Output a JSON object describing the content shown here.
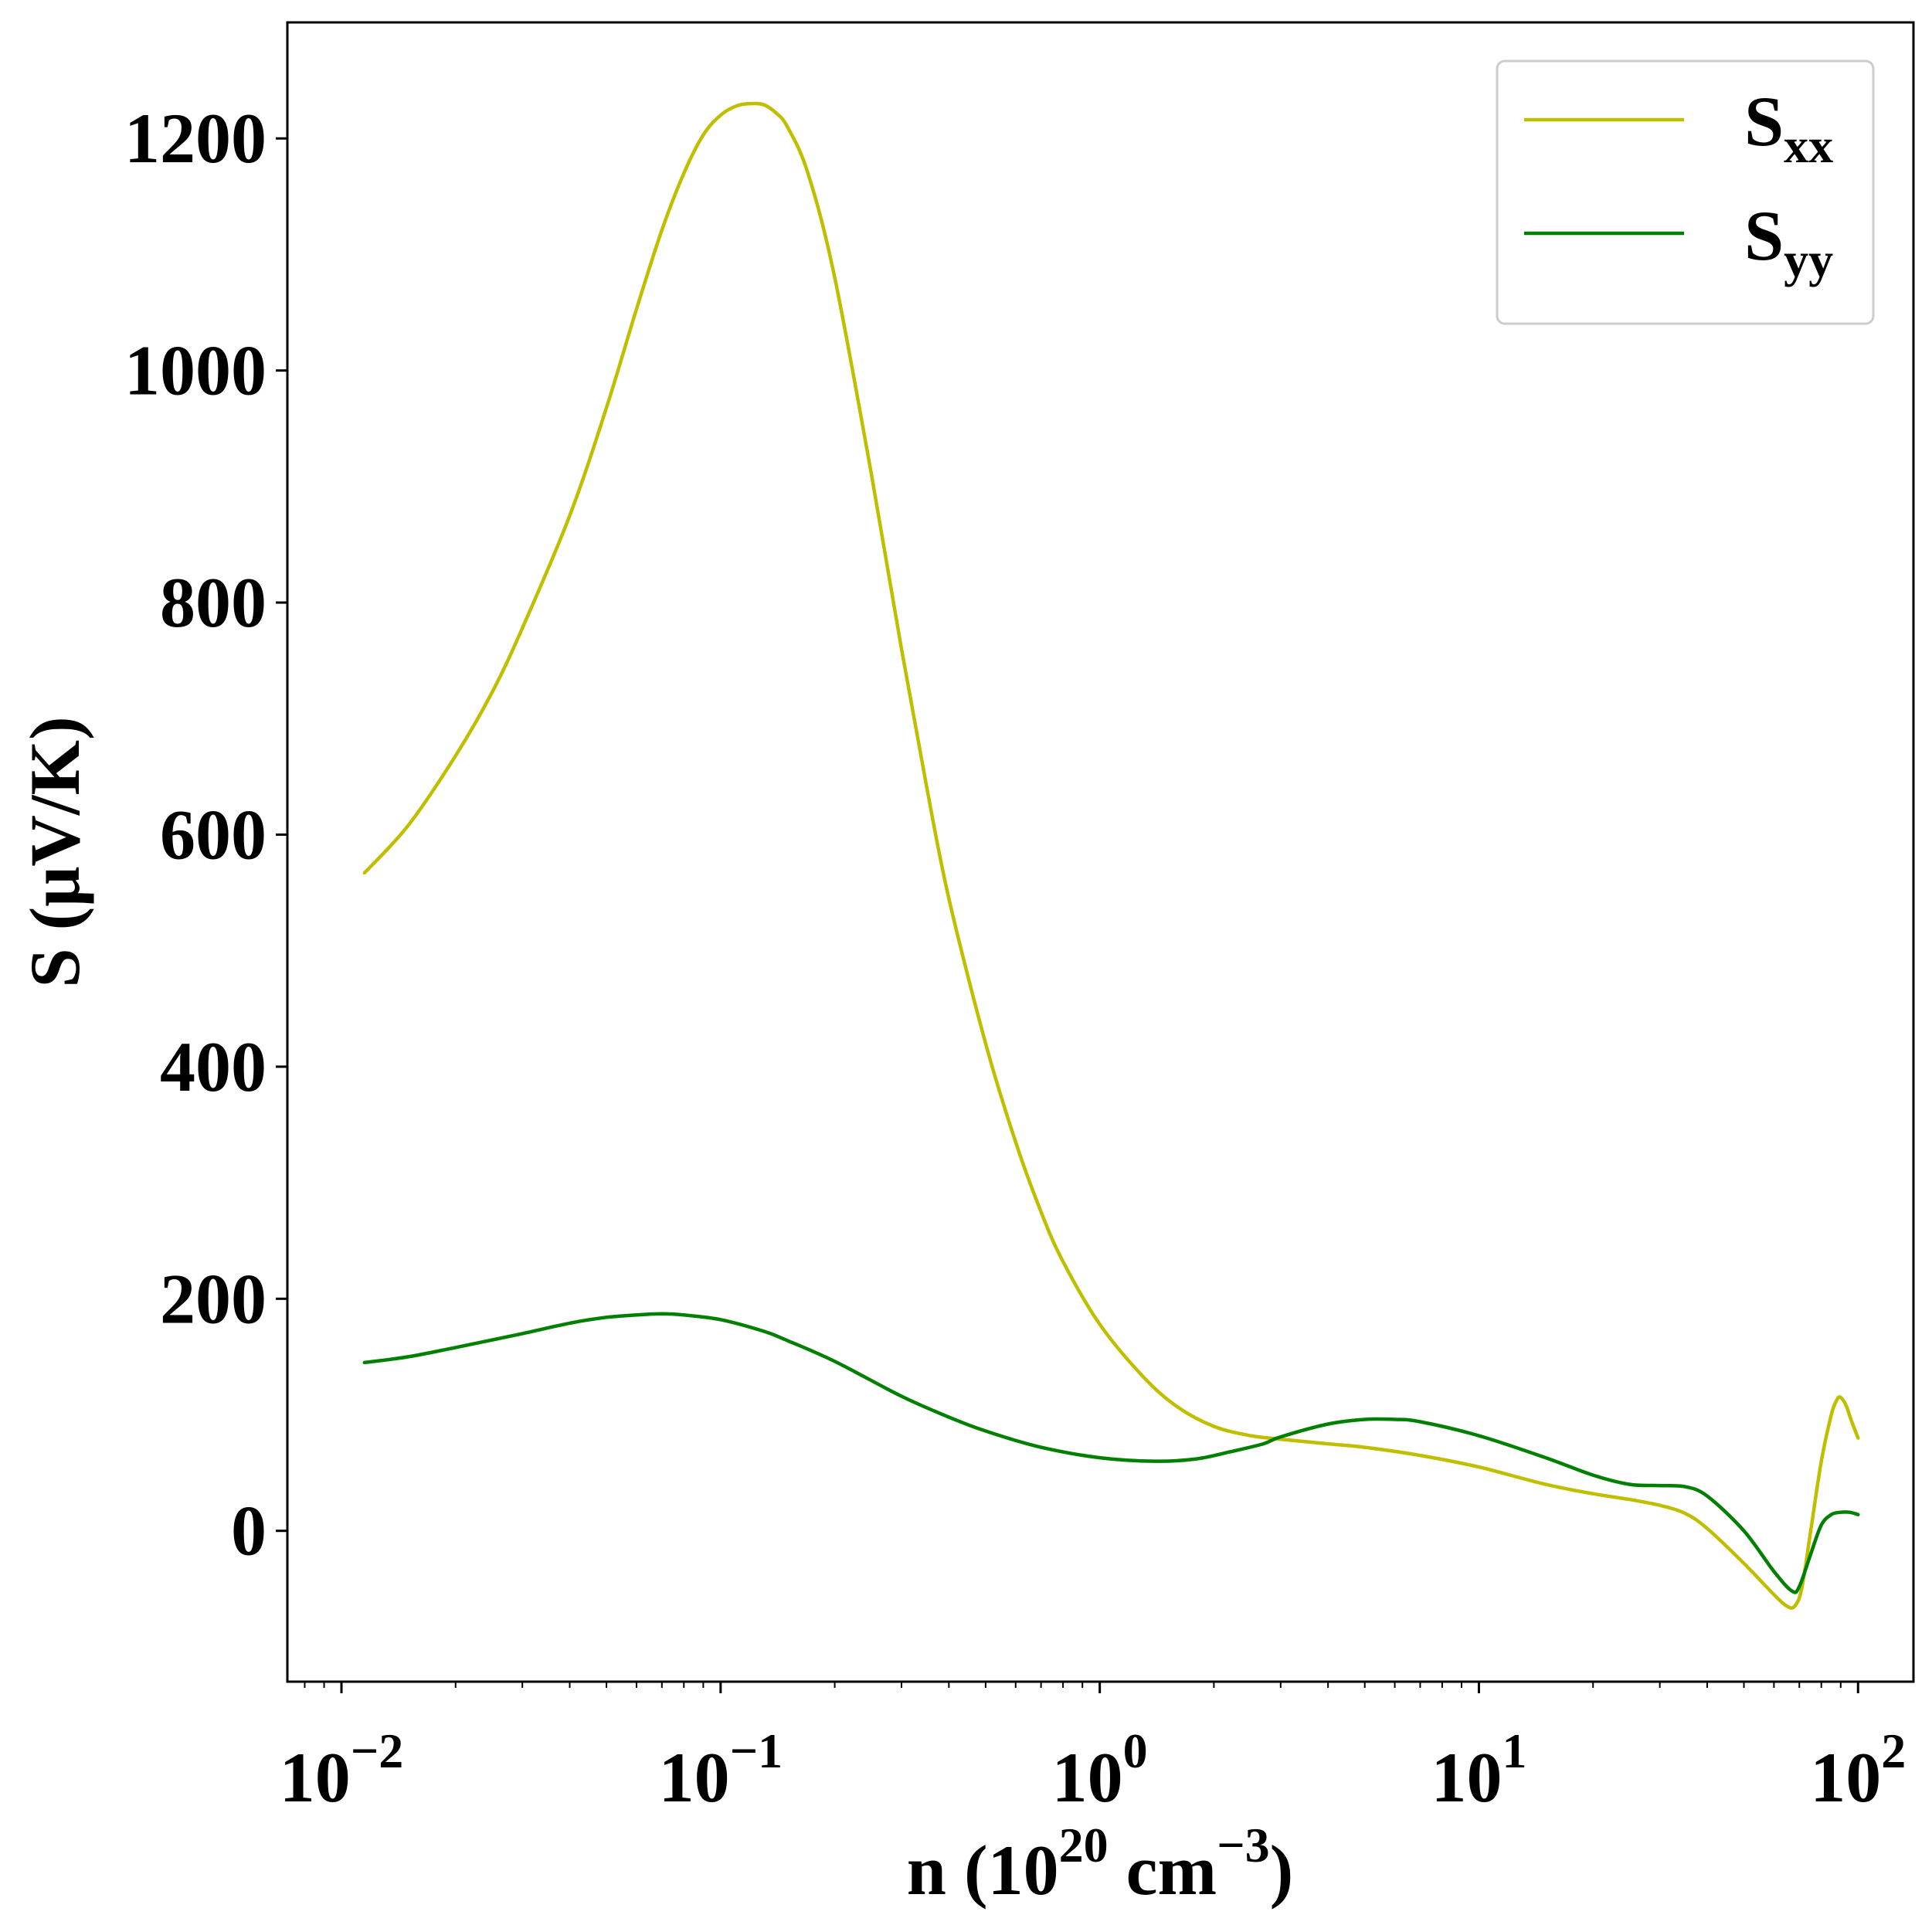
{
  "chart_data": {
    "type": "line",
    "title": "",
    "xscale": "log",
    "xlim": [
      0.0072,
      140
    ],
    "ylim": [
      -130,
      1300
    ],
    "xaxis": {
      "label_main": "n (10",
      "label_exp": "20",
      "label_unit": " cm",
      "label_unit_exp": "−3",
      "label_close": ")",
      "ticks": [
        {
          "value": 0.01,
          "base": "10",
          "exp": "−2"
        },
        {
          "value": 0.1,
          "base": "10",
          "exp": "−1"
        },
        {
          "value": 1,
          "base": "10",
          "exp": "0"
        },
        {
          "value": 10,
          "base": "10",
          "exp": "1"
        },
        {
          "value": 100,
          "base": "10",
          "exp": "2"
        }
      ]
    },
    "yaxis": {
      "label": "S (μV/K)",
      "ticks": [
        {
          "value": 0,
          "label": "0"
        },
        {
          "value": 200,
          "label": "200"
        },
        {
          "value": 400,
          "label": "400"
        },
        {
          "value": 600,
          "label": "600"
        },
        {
          "value": 800,
          "label": "800"
        },
        {
          "value": 1000,
          "label": "1000"
        },
        {
          "value": 1200,
          "label": "1200"
        }
      ]
    },
    "legend": {
      "position": "top-right",
      "entries": [
        {
          "base": "S",
          "sub": "xx",
          "color": "#bfbf00"
        },
        {
          "base": "S",
          "sub": "yy",
          "color": "#008000"
        }
      ]
    },
    "series": [
      {
        "name": "Sxx",
        "color": "#bfbf00",
        "x": [
          0.0115,
          0.015,
          0.02,
          0.025,
          0.03,
          0.04,
          0.05,
          0.06,
          0.07,
          0.08,
          0.09,
          0.1,
          0.11,
          0.12,
          0.13,
          0.14,
          0.15,
          0.17,
          0.2,
          0.25,
          0.3,
          0.35,
          0.4,
          0.5,
          0.6,
          0.7,
          0.8,
          1.0,
          1.3,
          1.6,
          2.0,
          2.5,
          3.0,
          4.0,
          5.0,
          7.0,
          10.0,
          15.0,
          20.0,
          25.0,
          30.0,
          35.0,
          40.0,
          50.0,
          60.0,
          65.0,
          68.0,
          71.0,
          75.0,
          80.0,
          85.0,
          88.0,
          90.0,
          93.0,
          96.0,
          100.0
        ],
        "y": [
          567,
          608,
          668,
          723,
          778,
          875,
          968,
          1053,
          1121,
          1170,
          1203,
          1220,
          1228,
          1230,
          1229,
          1222,
          1210,
          1170,
          1080,
          910,
          760,
          640,
          545,
          420,
          335,
          275,
          232,
          178,
          133,
          107,
          90,
          82,
          79,
          75,
          72,
          65,
          55,
          40,
          32,
          27,
          22,
          15,
          2,
          -28,
          -55,
          -65,
          -65,
          -50,
          0,
          60,
          100,
          113,
          115,
          108,
          95,
          80
        ]
      },
      {
        "name": "Syy",
        "color": "#008000",
        "x": [
          0.0115,
          0.015,
          0.02,
          0.03,
          0.04,
          0.05,
          0.06,
          0.07,
          0.08,
          0.1,
          0.13,
          0.15,
          0.2,
          0.3,
          0.4,
          0.5,
          0.7,
          1.0,
          1.4,
          1.8,
          2.2,
          2.7,
          3.0,
          4.0,
          5.0,
          6.0,
          7.0,
          10.0,
          15.0,
          20.0,
          25.0,
          30.0,
          35.0,
          40.0,
          50.0,
          60.0,
          67.0,
          70.0,
          75.0,
          80.0,
          85.0,
          90.0,
          95.0,
          100.0
        ],
        "y": [
          145,
          150,
          158,
          170,
          179,
          184,
          186,
          187,
          186,
          182,
          172,
          164,
          146,
          116,
          98,
          86,
          72,
          63,
          60,
          62,
          68,
          75,
          81,
          92,
          96,
          96,
          94,
          82,
          63,
          48,
          40,
          39,
          38,
          30,
          0,
          -35,
          -52,
          -48,
          -20,
          5,
          14,
          16,
          16,
          14
        ]
      }
    ]
  }
}
